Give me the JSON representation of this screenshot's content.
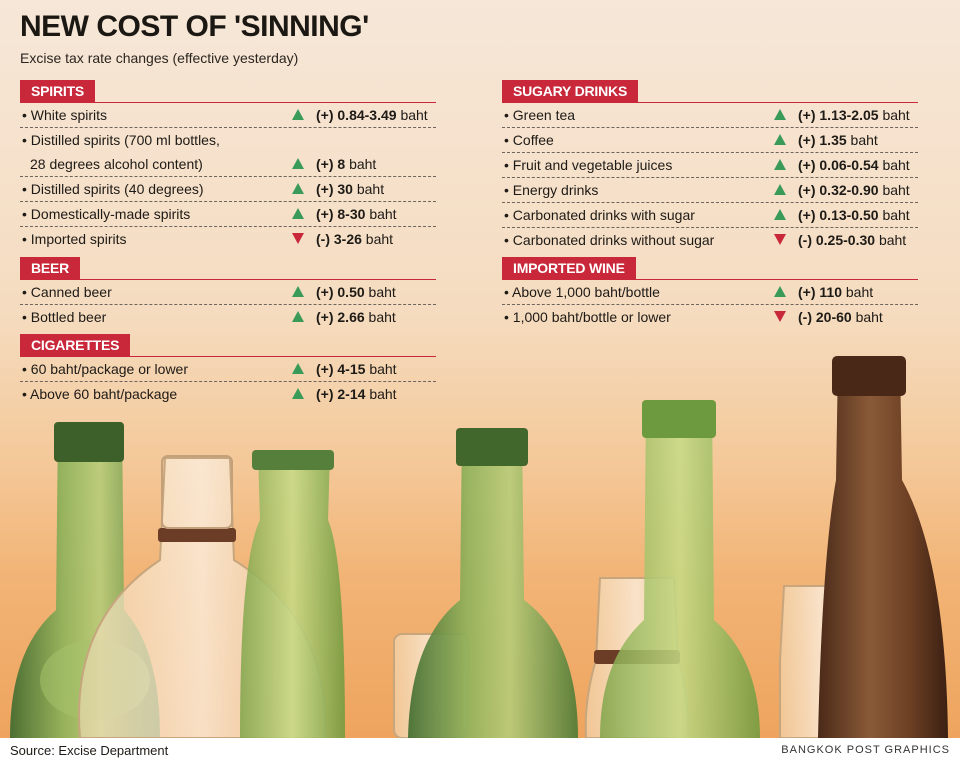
{
  "title": "NEW COST OF 'SINNING'",
  "subtitle": "Excise tax rate changes (effective yesterday)",
  "colors": {
    "accent": "#c8283a",
    "up": "#3a9b59",
    "down": "#c8283a"
  },
  "unit": "baht",
  "sections": {
    "spirits": {
      "label": "SPIRITS",
      "rows": [
        {
          "name": "• White spirits",
          "dir": "up",
          "value": "(+) 0.84-3.49"
        },
        {
          "name": "• Distilled spirits (700 ml bottles,",
          "name2": "28 degrees alcohol content)",
          "dir": "up",
          "value": "(+) 8"
        },
        {
          "name": "• Distilled spirits (40 degrees)",
          "dir": "up",
          "value": "(+) 30"
        },
        {
          "name": "• Domestically-made spirits",
          "dir": "up",
          "value": "(+) 8-30"
        },
        {
          "name": "• Imported spirits",
          "dir": "down",
          "value": "(-) 3-26"
        }
      ]
    },
    "beer": {
      "label": "BEER",
      "rows": [
        {
          "name": "• Canned beer",
          "dir": "up",
          "value": "(+) 0.50"
        },
        {
          "name": "• Bottled beer",
          "dir": "up",
          "value": "(+) 2.66"
        }
      ]
    },
    "cigarettes": {
      "label": "CIGARETTES",
      "rows": [
        {
          "name": "• 60 baht/package or lower",
          "dir": "up",
          "value": "(+) 4-15"
        },
        {
          "name": "• Above 60 baht/package",
          "dir": "up",
          "value": "(+) 2-14"
        }
      ]
    },
    "sugary": {
      "label": "SUGARY DRINKS",
      "rows": [
        {
          "name": "• Green tea",
          "dir": "up",
          "value": "(+) 1.13-2.05"
        },
        {
          "name": "• Coffee",
          "dir": "up",
          "value": "(+) 1.35"
        },
        {
          "name": "• Fruit and vegetable juices",
          "dir": "up",
          "value": "(+) 0.06-0.54"
        },
        {
          "name": "• Energy drinks",
          "dir": "up",
          "value": "(+) 0.32-0.90"
        },
        {
          "name": "• Carbonated drinks with sugar",
          "dir": "up",
          "value": "(+) 0.13-0.50"
        },
        {
          "name": "• Carbonated drinks without sugar",
          "dir": "down",
          "value": "(-) 0.25-0.30"
        }
      ]
    },
    "wine": {
      "label": "IMPORTED WINE",
      "rows": [
        {
          "name": "• Above 1,000 baht/bottle",
          "dir": "up",
          "value": "(+) 110"
        },
        {
          "name": "• 1,000 baht/bottle or lower",
          "dir": "down",
          "value": "(-) 20-60"
        }
      ]
    }
  },
  "footer": {
    "source": "Source: Excise Department",
    "credit": "BANGKOK POST GRAPHICS"
  }
}
